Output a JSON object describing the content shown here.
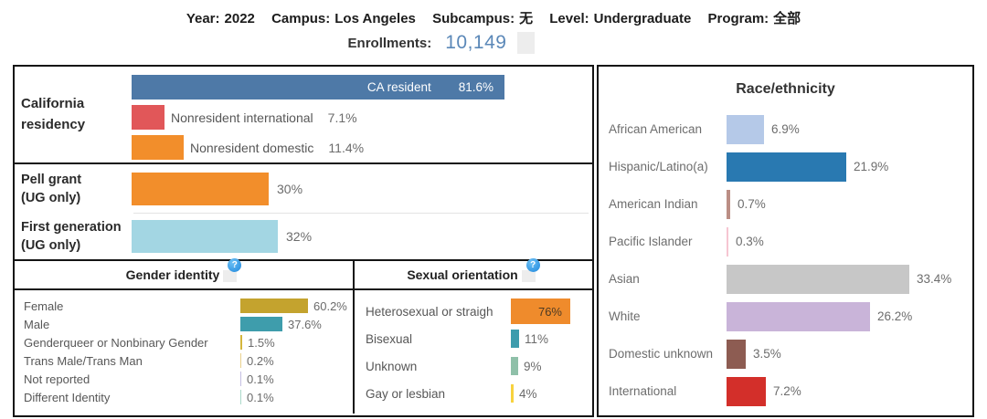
{
  "filters": [
    {
      "label": "Year:",
      "value": "2022"
    },
    {
      "label": "Campus:",
      "value": "Los Angeles"
    },
    {
      "label": "Subcampus:",
      "value": "无"
    },
    {
      "label": "Level:",
      "value": "Undergraduate"
    },
    {
      "label": "Program:",
      "value": "全部"
    }
  ],
  "enrollments": {
    "label": "Enrollments:",
    "value": "10,149"
  },
  "colors": {
    "accent_blue": "#5b88b8",
    "panel_border": "#141414",
    "help_icon_blue": "#2f9ff0"
  },
  "residency": {
    "section_label": "California residency",
    "rows": [
      {
        "label": "CA resident",
        "value": "81.6%",
        "pct": 81.6,
        "color": "#4e79a7",
        "label_inside": true
      },
      {
        "label": "Nonresident international",
        "value": "7.1%",
        "pct": 7.1,
        "color": "#e15759"
      },
      {
        "label": "Nonresident domestic",
        "value": "11.4%",
        "pct": 11.4,
        "color": "#f28e2b"
      }
    ]
  },
  "ug_stats": {
    "rows": [
      {
        "label": "Pell grant",
        "sublabel": "(UG only)",
        "value": "30%",
        "pct": 30,
        "color": "#f28e2b"
      },
      {
        "label": "First generation",
        "sublabel": "(UG only)",
        "value": "32%",
        "pct": 32,
        "color": "#a3d6e3"
      }
    ]
  },
  "gender": {
    "title": "Gender identity",
    "help_glyph": "?",
    "rows": [
      {
        "label": "Female",
        "value": "60.2%",
        "pct": 60.2,
        "color": "#c4a32e"
      },
      {
        "label": "Male",
        "value": "37.6%",
        "pct": 37.6,
        "color": "#3e9dac"
      },
      {
        "label": "Genderqueer or Nonbinary Gender",
        "value": "1.5%",
        "pct": 1.5,
        "color": "#d4b63c"
      },
      {
        "label": "Trans Male/Trans Man",
        "value": "0.2%",
        "pct": 0.2,
        "color": "#e9d18c"
      },
      {
        "label": "Not reported",
        "value": "0.1%",
        "pct": 0.1,
        "color": "#c5bfe3"
      },
      {
        "label": "Different Identity",
        "value": "0.1%",
        "pct": 0.1,
        "color": "#abd9ca"
      }
    ]
  },
  "orientation": {
    "title": "Sexual orientation",
    "help_glyph": "?",
    "rows": [
      {
        "label": "Heterosexual or straigh",
        "value": "76%",
        "pct": 76,
        "color": "#ef8b2c",
        "value_inside": true
      },
      {
        "label": "Bisexual",
        "value": "11%",
        "pct": 11,
        "color": "#3d9cad"
      },
      {
        "label": "Unknown",
        "value": "9%",
        "pct": 9,
        "color": "#8fc0a9"
      },
      {
        "label": "Gay or lesbian",
        "value": "4%",
        "pct": 4,
        "color": "#f7d23e"
      }
    ]
  },
  "race": {
    "title": "Race/ethnicity",
    "rows": [
      {
        "label": "African American",
        "value": "6.9%",
        "pct": 6.9,
        "color": "#b5c9e8"
      },
      {
        "label": "Hispanic/Latino(a)",
        "value": "21.9%",
        "pct": 21.9,
        "color": "#2979b1"
      },
      {
        "label": "American Indian",
        "value": "0.7%",
        "pct": 0.7,
        "color": "#bb8e85"
      },
      {
        "label": "Pacific Islander",
        "value": "0.3%",
        "pct": 0.3,
        "color": "#f6c6d2"
      },
      {
        "label": "Asian",
        "value": "33.4%",
        "pct": 33.4,
        "color": "#c7c7c7"
      },
      {
        "label": "White",
        "value": "26.2%",
        "pct": 26.2,
        "color": "#c9b4d9"
      },
      {
        "label": "Domestic unknown",
        "value": "3.5%",
        "pct": 3.5,
        "color": "#8d5c52"
      },
      {
        "label": "International",
        "value": "7.2%",
        "pct": 7.2,
        "color": "#d32f2a"
      }
    ]
  },
  "chart_data": [
    {
      "type": "bar",
      "orientation": "horizontal",
      "title": "California residency",
      "unit": "%",
      "categories": [
        "CA resident",
        "Nonresident international",
        "Nonresident domestic"
      ],
      "values": [
        81.6,
        7.1,
        11.4
      ]
    },
    {
      "type": "bar",
      "orientation": "horizontal",
      "title": "",
      "unit": "%",
      "categories": [
        "Pell grant (UG only)",
        "First generation (UG only)"
      ],
      "values": [
        30,
        32
      ]
    },
    {
      "type": "bar",
      "orientation": "horizontal",
      "title": "Gender identity",
      "unit": "%",
      "categories": [
        "Female",
        "Male",
        "Genderqueer or Nonbinary Gender",
        "Trans Male/Trans Man",
        "Not reported",
        "Different Identity"
      ],
      "values": [
        60.2,
        37.6,
        1.5,
        0.2,
        0.1,
        0.1
      ]
    },
    {
      "type": "bar",
      "orientation": "horizontal",
      "title": "Sexual orientation",
      "unit": "%",
      "categories": [
        "Heterosexual or straight",
        "Bisexual",
        "Unknown",
        "Gay or lesbian"
      ],
      "values": [
        76,
        11,
        9,
        4
      ]
    },
    {
      "type": "bar",
      "orientation": "horizontal",
      "title": "Race/ethnicity",
      "unit": "%",
      "categories": [
        "African American",
        "Hispanic/Latino(a)",
        "American Indian",
        "Pacific Islander",
        "Asian",
        "White",
        "Domestic unknown",
        "International"
      ],
      "values": [
        6.9,
        21.9,
        0.7,
        0.3,
        33.4,
        26.2,
        3.5,
        7.2
      ]
    }
  ]
}
